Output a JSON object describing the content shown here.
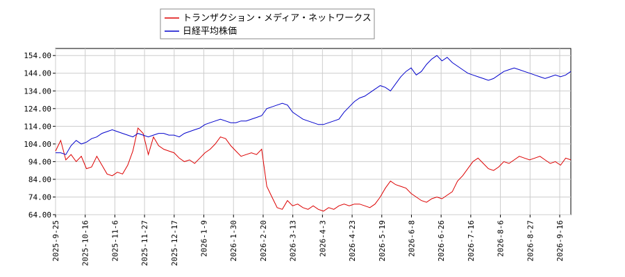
{
  "chart_data": {
    "type": "line",
    "title": "",
    "xlabel": "",
    "ylabel": "",
    "ylim": [
      64,
      158
    ],
    "yticks": [
      "154.00",
      "144.00",
      "134.00",
      "124.00",
      "114.00",
      "104.00",
      "94.00",
      "84.00",
      "74.00",
      "64.00"
    ],
    "xticks": [
      "2025-9-25",
      "2025-10-16",
      "2025-11-6",
      "2025-11-27",
      "2025-12-17",
      "2026-1-9",
      "2026-1-30",
      "2026-2-20",
      "2026-3-13",
      "2026-4-3",
      "2026-4-23",
      "2026-5-19",
      "2026-6-8",
      "2026-6-26",
      "2026-7-16",
      "2026-8-6",
      "2026-8-27",
      "2026-9-16"
    ],
    "grid": true,
    "legend_position": "top-left",
    "series": [
      {
        "name": "トランザクション・メディア・ネットワークス",
        "color": "#dd0000",
        "points": [
          [
            0,
            100
          ],
          [
            1,
            106
          ],
          [
            2,
            95
          ],
          [
            3,
            98
          ],
          [
            4,
            94
          ],
          [
            5,
            97
          ],
          [
            6,
            90
          ],
          [
            7,
            91
          ],
          [
            8,
            97
          ],
          [
            9,
            92
          ],
          [
            10,
            87
          ],
          [
            11,
            86
          ],
          [
            12,
            88
          ],
          [
            13,
            87
          ],
          [
            14,
            92
          ],
          [
            15,
            100
          ],
          [
            16,
            113
          ],
          [
            17,
            110
          ],
          [
            18,
            98
          ],
          [
            19,
            108
          ],
          [
            20,
            103
          ],
          [
            21,
            101
          ],
          [
            22,
            100
          ],
          [
            23,
            99
          ],
          [
            24,
            96
          ],
          [
            25,
            94
          ],
          [
            26,
            95
          ],
          [
            27,
            93
          ],
          [
            28,
            96
          ],
          [
            29,
            99
          ],
          [
            30,
            101
          ],
          [
            31,
            104
          ],
          [
            32,
            108
          ],
          [
            33,
            107
          ],
          [
            34,
            103
          ],
          [
            35,
            100
          ],
          [
            36,
            97
          ],
          [
            37,
            98
          ],
          [
            38,
            99
          ],
          [
            39,
            98
          ],
          [
            40,
            101
          ],
          [
            41,
            80
          ],
          [
            42,
            74
          ],
          [
            43,
            68
          ],
          [
            44,
            67
          ],
          [
            45,
            72
          ],
          [
            46,
            69
          ],
          [
            47,
            70
          ],
          [
            48,
            68
          ],
          [
            49,
            67
          ],
          [
            50,
            69
          ],
          [
            51,
            67
          ],
          [
            52,
            66
          ],
          [
            53,
            68
          ],
          [
            54,
            67
          ],
          [
            55,
            69
          ],
          [
            56,
            70
          ],
          [
            57,
            69
          ],
          [
            58,
            70
          ],
          [
            59,
            70
          ],
          [
            60,
            69
          ],
          [
            61,
            68
          ],
          [
            62,
            70
          ],
          [
            63,
            74
          ],
          [
            64,
            79
          ],
          [
            65,
            83
          ],
          [
            66,
            81
          ],
          [
            67,
            80
          ],
          [
            68,
            79
          ],
          [
            69,
            76
          ],
          [
            70,
            74
          ],
          [
            71,
            72
          ],
          [
            72,
            71
          ],
          [
            73,
            73
          ],
          [
            74,
            74
          ],
          [
            75,
            73
          ],
          [
            76,
            75
          ],
          [
            77,
            77
          ],
          [
            78,
            83
          ],
          [
            79,
            86
          ],
          [
            80,
            90
          ],
          [
            81,
            94
          ],
          [
            82,
            96
          ],
          [
            83,
            93
          ],
          [
            84,
            90
          ],
          [
            85,
            89
          ],
          [
            86,
            91
          ],
          [
            87,
            94
          ],
          [
            88,
            93
          ],
          [
            89,
            95
          ],
          [
            90,
            97
          ],
          [
            91,
            96
          ],
          [
            92,
            95
          ],
          [
            93,
            96
          ],
          [
            94,
            97
          ],
          [
            95,
            95
          ],
          [
            96,
            93
          ],
          [
            97,
            94
          ],
          [
            98,
            92
          ],
          [
            99,
            96
          ],
          [
            100,
            95
          ]
        ]
      },
      {
        "name": "日経平均株価",
        "color": "#0000cc",
        "points": [
          [
            0,
            99
          ],
          [
            1,
            99
          ],
          [
            2,
            98
          ],
          [
            3,
            103
          ],
          [
            4,
            106
          ],
          [
            5,
            104
          ],
          [
            6,
            105
          ],
          [
            7,
            107
          ],
          [
            8,
            108
          ],
          [
            9,
            110
          ],
          [
            10,
            111
          ],
          [
            11,
            112
          ],
          [
            12,
            111
          ],
          [
            13,
            110
          ],
          [
            14,
            109
          ],
          [
            15,
            108
          ],
          [
            16,
            110
          ],
          [
            17,
            109
          ],
          [
            18,
            108
          ],
          [
            19,
            109
          ],
          [
            20,
            110
          ],
          [
            21,
            110
          ],
          [
            22,
            109
          ],
          [
            23,
            109
          ],
          [
            24,
            108
          ],
          [
            25,
            110
          ],
          [
            26,
            111
          ],
          [
            27,
            112
          ],
          [
            28,
            113
          ],
          [
            29,
            115
          ],
          [
            30,
            116
          ],
          [
            31,
            117
          ],
          [
            32,
            118
          ],
          [
            33,
            117
          ],
          [
            34,
            116
          ],
          [
            35,
            116
          ],
          [
            36,
            117
          ],
          [
            37,
            117
          ],
          [
            38,
            118
          ],
          [
            39,
            119
          ],
          [
            40,
            120
          ],
          [
            41,
            124
          ],
          [
            42,
            125
          ],
          [
            43,
            126
          ],
          [
            44,
            127
          ],
          [
            45,
            126
          ],
          [
            46,
            122
          ],
          [
            47,
            120
          ],
          [
            48,
            118
          ],
          [
            49,
            117
          ],
          [
            50,
            116
          ],
          [
            51,
            115
          ],
          [
            52,
            115
          ],
          [
            53,
            116
          ],
          [
            54,
            117
          ],
          [
            55,
            118
          ],
          [
            56,
            122
          ],
          [
            57,
            125
          ],
          [
            58,
            128
          ],
          [
            59,
            130
          ],
          [
            60,
            131
          ],
          [
            61,
            133
          ],
          [
            62,
            135
          ],
          [
            63,
            137
          ],
          [
            64,
            136
          ],
          [
            65,
            134
          ],
          [
            66,
            138
          ],
          [
            67,
            142
          ],
          [
            68,
            145
          ],
          [
            69,
            147
          ],
          [
            70,
            143
          ],
          [
            71,
            145
          ],
          [
            72,
            149
          ],
          [
            73,
            152
          ],
          [
            74,
            154
          ],
          [
            75,
            151
          ],
          [
            76,
            153
          ],
          [
            77,
            150
          ],
          [
            78,
            148
          ],
          [
            79,
            146
          ],
          [
            80,
            144
          ],
          [
            81,
            143
          ],
          [
            82,
            142
          ],
          [
            83,
            141
          ],
          [
            84,
            140
          ],
          [
            85,
            141
          ],
          [
            86,
            143
          ],
          [
            87,
            145
          ],
          [
            88,
            146
          ],
          [
            89,
            147
          ],
          [
            90,
            146
          ],
          [
            91,
            145
          ],
          [
            92,
            144
          ],
          [
            93,
            143
          ],
          [
            94,
            142
          ],
          [
            95,
            141
          ],
          [
            96,
            142
          ],
          [
            97,
            143
          ],
          [
            98,
            142
          ],
          [
            99,
            143
          ],
          [
            100,
            145
          ]
        ]
      }
    ]
  }
}
